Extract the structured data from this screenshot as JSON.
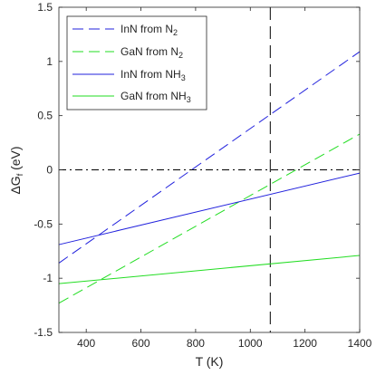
{
  "chart_data": {
    "type": "line",
    "xlabel": "T (K)",
    "ylabel_main": "ΔG",
    "ylabel_sub": "f",
    "ylabel_unit": " (eV)",
    "xlim": [
      300,
      1400
    ],
    "ylim": [
      -1.5,
      1.5
    ],
    "xticks": [
      400,
      600,
      800,
      1000,
      1200,
      1400
    ],
    "yticks": [
      -1.5,
      -1,
      -0.5,
      0,
      0.5,
      1,
      1.5
    ],
    "xtick_labels": [
      "400",
      "600",
      "800",
      "1000",
      "1200",
      "1400"
    ],
    "ytick_labels": [
      "-1.5",
      "-1",
      "-0.5",
      "0",
      "0.5",
      "1",
      "1.5"
    ],
    "grid": false,
    "legend_position": "top-left",
    "reference_lines": [
      {
        "orientation": "horizontal",
        "value": 0,
        "style": "dashdot",
        "color": "#000000"
      },
      {
        "orientation": "vertical",
        "value": 1073,
        "style": "longdash",
        "color": "#000000"
      }
    ],
    "series": [
      {
        "name_main": "InN from N",
        "name_sub": "2",
        "style": "dashed",
        "color": "#2222dd",
        "x": [
          300,
          1400
        ],
        "y": [
          -0.86,
          1.09
        ]
      },
      {
        "name_main": "GaN from N",
        "name_sub": "2",
        "style": "dashed",
        "color": "#22dd22",
        "x": [
          300,
          1400
        ],
        "y": [
          -1.23,
          0.33
        ]
      },
      {
        "name_main": "InN from NH",
        "name_sub": "3",
        "style": "solid",
        "color": "#2222dd",
        "x": [
          300,
          1400
        ],
        "y": [
          -0.69,
          -0.03
        ]
      },
      {
        "name_main": "GaN from NH",
        "name_sub": "3",
        "style": "solid",
        "color": "#22dd22",
        "x": [
          300,
          1400
        ],
        "y": [
          -1.05,
          -0.79
        ]
      }
    ]
  }
}
